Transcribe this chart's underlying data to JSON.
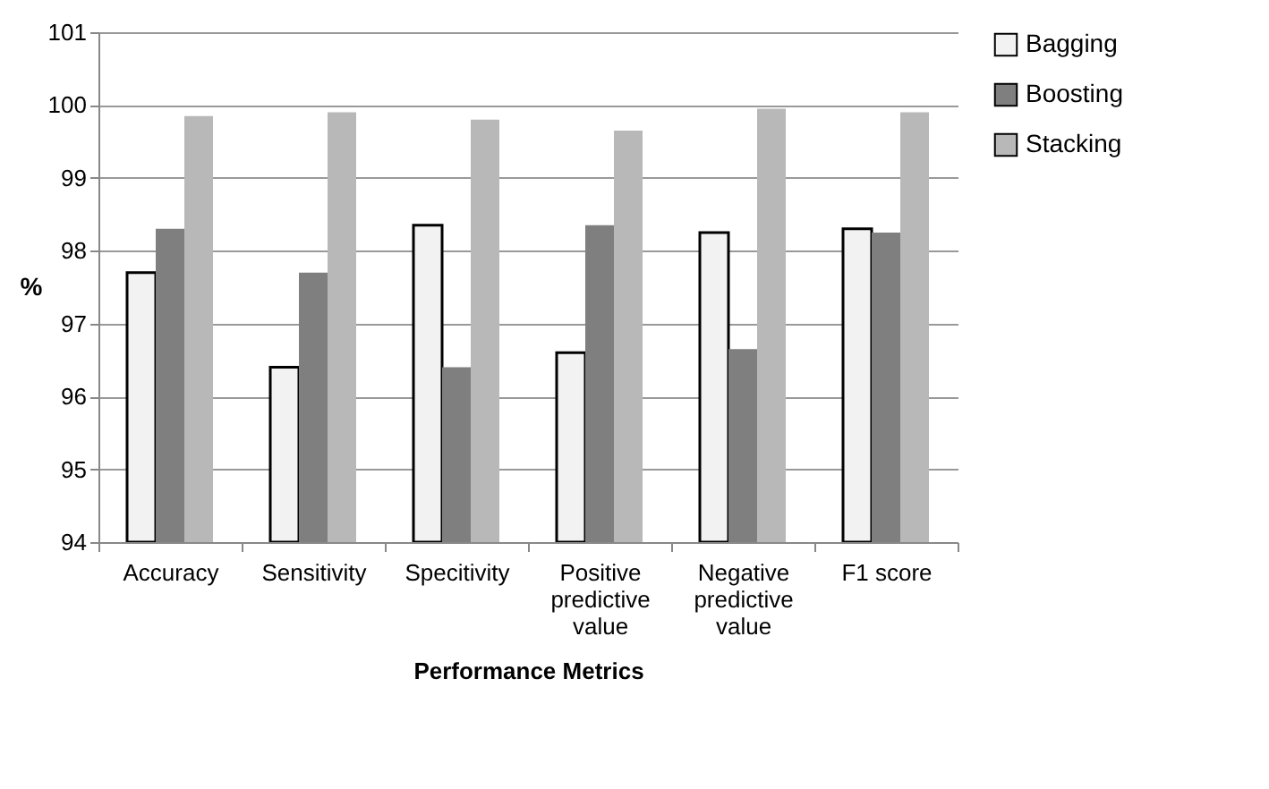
{
  "chart_data": {
    "type": "bar",
    "xlabel": "Performance Metrics",
    "ylabel": "%",
    "categories": [
      "Accuracy",
      "Sensitivity",
      "Specitivity",
      "Positive predictive value",
      "Negative predictive value",
      "F1 score"
    ],
    "series": [
      {
        "name": "Bagging",
        "color": "#f2f2f2",
        "values": [
          97.7,
          96.4,
          98.35,
          96.6,
          98.25,
          98.3
        ]
      },
      {
        "name": "Boosting",
        "color": "#7f7f7f",
        "values": [
          98.3,
          97.7,
          96.4,
          98.35,
          96.65,
          98.25
        ]
      },
      {
        "name": "Stacking",
        "color": "#b8b8b8",
        "values": [
          99.85,
          99.9,
          99.8,
          99.65,
          99.95,
          99.9
        ]
      }
    ],
    "ylim": [
      94,
      101
    ],
    "yticks": [
      94,
      95,
      96,
      97,
      98,
      99,
      100,
      101
    ],
    "grid": "y",
    "legend": "right"
  }
}
